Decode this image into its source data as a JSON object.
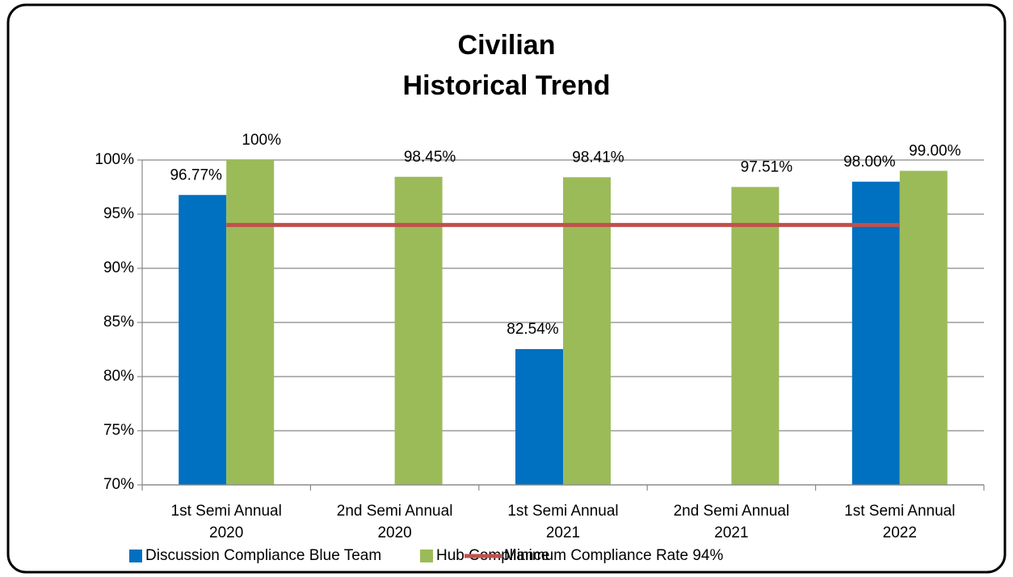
{
  "chart_data": {
    "type": "bar",
    "title": "Civilian",
    "subtitle": "Historical Trend",
    "categories": [
      "1st Semi Annual 2020",
      "2nd Semi Annual 2020",
      "1st Semi Annual 2021",
      "2nd Semi Annual 2021",
      "1st Semi Annual 2022"
    ],
    "series": [
      {
        "name": "Discussion Compliance Blue Team",
        "color": "#0070c0",
        "values": [
          96.77,
          null,
          82.54,
          null,
          98.0
        ],
        "value_labels": [
          "96.77%",
          null,
          "82.54%",
          null,
          "98.00%"
        ]
      },
      {
        "name": "Hub Compliance",
        "color": "#9bbb59",
        "values": [
          100,
          98.45,
          98.41,
          97.51,
          99.0
        ],
        "value_labels": [
          "100%",
          "98.45%",
          "98.41%",
          "97.51%",
          "99.00%"
        ]
      },
      {
        "name": "Minimum Compliance Rate 94%",
        "type": "line",
        "color": "#c0504d",
        "values": [
          94,
          94,
          94,
          94,
          94
        ]
      }
    ],
    "ylim": [
      70,
      100
    ],
    "yticks": [
      {
        "value": 70,
        "label": "70%"
      },
      {
        "value": 75,
        "label": "75%"
      },
      {
        "value": 80,
        "label": "80%"
      },
      {
        "value": 85,
        "label": "85%"
      },
      {
        "value": 90,
        "label": "90%"
      },
      {
        "value": 95,
        "label": "95%"
      },
      {
        "value": 100,
        "label": "100%"
      }
    ],
    "grid": true,
    "legend": "bottom"
  }
}
